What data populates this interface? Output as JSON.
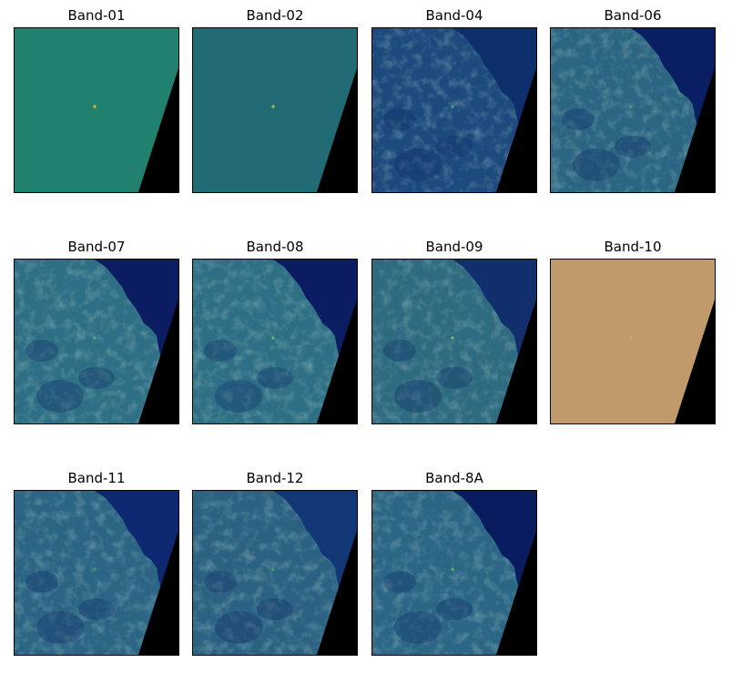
{
  "figure": {
    "panels": [
      {
        "title": "Band-01",
        "style": "flat",
        "land_color": "#21816e",
        "sea_color": "#21816e",
        "hot_color": "#c8b23a"
      },
      {
        "title": "Band-02",
        "style": "flat",
        "land_color": "#216b74",
        "sea_color": "#216b74",
        "hot_color": "#8fba4a"
      },
      {
        "title": "Band-04",
        "style": "textured",
        "land_color": "#1d4a7d",
        "sea_color": "#0d2f6c",
        "hot_color": "#3d9a6a"
      },
      {
        "title": "Band-06",
        "style": "textured",
        "land_color": "#2b6582",
        "sea_color": "#0a1f63",
        "hot_color": "#43a678"
      },
      {
        "title": "Band-07",
        "style": "textured",
        "land_color": "#2f6f85",
        "sea_color": "#0b1c62",
        "hot_color": "#48ab7a"
      },
      {
        "title": "Band-08",
        "style": "textured",
        "land_color": "#2f6f85",
        "sea_color": "#0b1c62",
        "hot_color": "#6ab555"
      },
      {
        "title": "Band-09",
        "style": "textured",
        "land_color": "#2e6a80",
        "sea_color": "#112f6d",
        "hot_color": "#76b848"
      },
      {
        "title": "Band-10",
        "style": "flat",
        "land_color": "#c19a6b",
        "sea_color": "#c19a6b",
        "hot_color": "#c9a57a"
      },
      {
        "title": "Band-11",
        "style": "textured",
        "land_color": "#2c6584",
        "sea_color": "#0d2870",
        "hot_color": "#3e9b74"
      },
      {
        "title": "Band-12",
        "style": "textured",
        "land_color": "#2b6282",
        "sea_color": "#123776",
        "hot_color": "#3e9b74"
      },
      {
        "title": "Band-8A",
        "style": "textured",
        "land_color": "#2c6685",
        "sea_color": "#0a1c60",
        "hot_color": "#5ab066"
      }
    ],
    "nodata_color": "#000000"
  }
}
